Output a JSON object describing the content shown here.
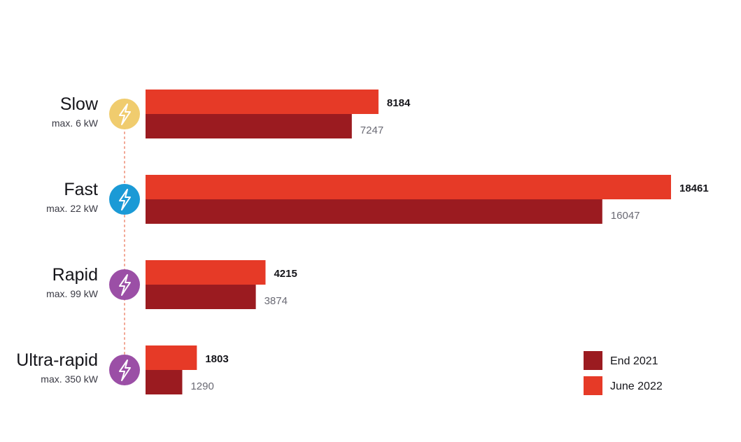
{
  "chart_data": {
    "type": "bar",
    "orientation": "horizontal",
    "categories": [
      "Slow",
      "Fast",
      "Rapid",
      "Ultra-rapid"
    ],
    "category_subtitles": [
      "max. 6 kW",
      "max. 22 kW",
      "max. 99 kW",
      "max. 350 kW"
    ],
    "category_icons": [
      "lightning-bolt-icon",
      "lightning-bolt-icon",
      "lightning-bolt-icon",
      "lightning-bolt-icon"
    ],
    "icon_colors": [
      "#f0cc6e",
      "#1b9ad6",
      "#9b4fa6",
      "#9b4fa6"
    ],
    "series": [
      {
        "name": "June 2022",
        "values": [
          8184,
          18461,
          4215,
          1803
        ],
        "color": "#e63a27"
      },
      {
        "name": "End 2021",
        "values": [
          7247,
          16047,
          3874,
          1290
        ],
        "color": "#9b1b20"
      }
    ],
    "legend": {
      "position": "bottom-right",
      "order": [
        "End 2021",
        "June 2022"
      ]
    },
    "xlim": [
      0,
      18461
    ],
    "grid": false
  }
}
